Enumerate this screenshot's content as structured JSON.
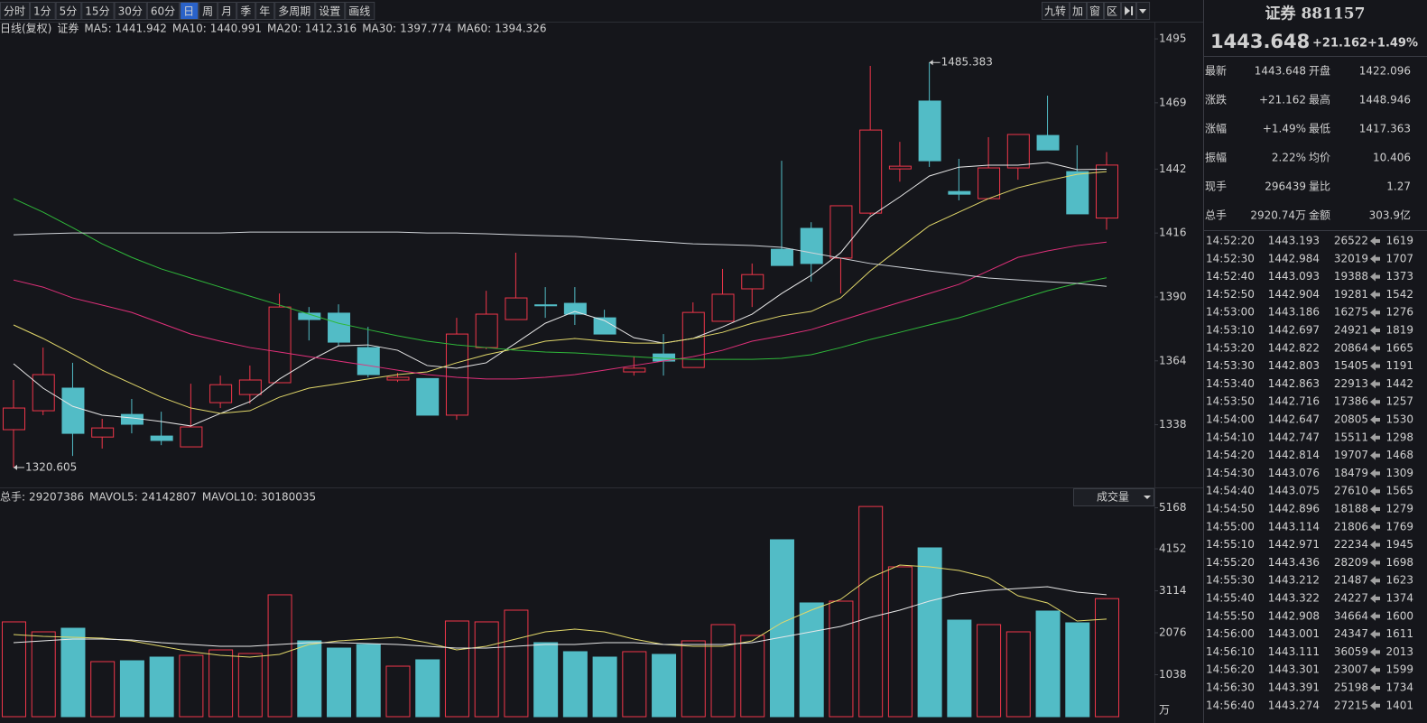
{
  "toolbar": {
    "periods": [
      "分时",
      "1分",
      "5分",
      "15分",
      "30分",
      "60分",
      "日",
      "周",
      "月",
      "季",
      "年",
      "多周期",
      "设置",
      "画线"
    ],
    "active": "日",
    "right": [
      "九转",
      "加",
      "窗",
      "区"
    ]
  },
  "chart_data": [
    {
      "type": "candlestick",
      "label": "日线(复权)",
      "name": "证券",
      "up_color": "#f0364a",
      "down_color": "#52bcc6",
      "open": [
        1336.0,
        1343.7,
        1352.9,
        1333.0,
        1342.2,
        1333.4,
        1329.0,
        1347.0,
        1350.3,
        1355.1,
        1383.4,
        1383.4,
        1369.4,
        1356.2,
        1356.8,
        1341.9,
        1369.4,
        1380.8,
        1386.8,
        1387.4,
        1381.5,
        1359.5,
        1366.8,
        1361.3,
        1380.1,
        1393.3,
        1409.4,
        1417.9,
        1405.8,
        1424.1,
        1442.1,
        1469.7,
        1432.9,
        1430.0,
        1442.5,
        1455.7,
        1441.0,
        1422.096
      ],
      "high": [
        1356.2,
        1369.4,
        1363.2,
        1340.4,
        1348.5,
        1343.3,
        1354.7,
        1358.0,
        1362.1,
        1391.4,
        1385.9,
        1387.0,
        1377.8,
        1359.1,
        1356.8,
        1381.5,
        1392.5,
        1408.0,
        1394.0,
        1394.0,
        1384.8,
        1365.7,
        1374.9,
        1387.8,
        1401.4,
        1403.6,
        1445.4,
        1420.4,
        1427.1,
        1484.0,
        1453.1,
        1485.383,
        1446.2,
        1455.0,
        1456.1,
        1471.9,
        1451.7,
        1448.946
      ],
      "low": [
        1320.605,
        1341.9,
        1325.3,
        1328.3,
        1334.5,
        1329.7,
        1329.0,
        1344.8,
        1346.6,
        1355.1,
        1372.3,
        1370.1,
        1357.3,
        1355.4,
        1341.9,
        1340.0,
        1368.7,
        1380.8,
        1381.5,
        1378.6,
        1374.9,
        1358.0,
        1358.0,
        1361.3,
        1380.1,
        1385.9,
        1402.8,
        1396.2,
        1391.4,
        1423.4,
        1436.9,
        1442.9,
        1429.3,
        1430.0,
        1437.7,
        1449.8,
        1423.8,
        1417.363
      ],
      "close": [
        1344.8,
        1358.4,
        1334.5,
        1336.7,
        1338.2,
        1331.6,
        1337.1,
        1354.3,
        1356.2,
        1385.9,
        1380.8,
        1371.6,
        1358.4,
        1357.3,
        1341.9,
        1374.9,
        1383.0,
        1389.6,
        1386.4,
        1383.0,
        1374.9,
        1361.0,
        1363.9,
        1383.7,
        1391.1,
        1399.1,
        1402.8,
        1403.6,
        1427.1,
        1457.9,
        1443.2,
        1445.4,
        1431.8,
        1442.5,
        1456.1,
        1449.8,
        1423.8,
        1443.648
      ],
      "ylim": [
        1312.5,
        1502
      ],
      "yticks": [
        1495,
        1469,
        1442,
        1416,
        1390,
        1364,
        1338
      ],
      "series": [
        {
          "name": "MA5:",
          "color": "#e8e8e8",
          "values": [
            1362.8,
            1352.9,
            1345.5,
            1341.9,
            1340.8,
            1339.3,
            1337.5,
            1342.6,
            1347.4,
            1356.6,
            1363.9,
            1370.1,
            1370.5,
            1368.3,
            1362.1,
            1361.0,
            1363.2,
            1371.2,
            1379.3,
            1384.1,
            1380.4,
            1373.4,
            1371.2,
            1373.1,
            1377.8,
            1383.0,
            1391.4,
            1398.8,
            1408.0,
            1422.7,
            1430.7,
            1439.2,
            1442.8,
            1443.6,
            1443.6,
            1444.7,
            1441.8,
            1441.942
          ]
        },
        {
          "name": "MA10:",
          "color": "#e2d86a",
          "values": [
            1378.6,
            1373.1,
            1366.8,
            1360.2,
            1354.7,
            1349.2,
            1344.8,
            1342.6,
            1343.7,
            1349.2,
            1352.9,
            1354.7,
            1356.6,
            1358.4,
            1359.5,
            1363.2,
            1366.5,
            1369.0,
            1372.0,
            1373.1,
            1372.0,
            1371.2,
            1371.2,
            1373.1,
            1375.6,
            1379.3,
            1382.3,
            1384.1,
            1389.6,
            1400.6,
            1409.8,
            1419.0,
            1424.5,
            1430.0,
            1434.4,
            1437.3,
            1439.9,
            1440.991
          ]
        },
        {
          "name": "MA20:",
          "color": "#e0307a",
          "values": [
            1396.9,
            1394.0,
            1389.6,
            1386.7,
            1383.7,
            1379.3,
            1374.9,
            1372.0,
            1369.4,
            1367.6,
            1365.7,
            1363.9,
            1362.1,
            1360.2,
            1358.4,
            1357.3,
            1356.6,
            1356.6,
            1357.3,
            1358.4,
            1360.2,
            1362.1,
            1363.9,
            1365.7,
            1368.3,
            1372.0,
            1374.2,
            1376.7,
            1380.4,
            1384.1,
            1387.8,
            1391.4,
            1395.1,
            1400.6,
            1406.1,
            1408.7,
            1410.9,
            1412.316
          ]
        },
        {
          "name": "MA30:",
          "color": "#2fb83a",
          "values": [
            1430.0,
            1424.5,
            1418.2,
            1411.6,
            1406.1,
            1401.4,
            1397.7,
            1394.0,
            1390.3,
            1386.7,
            1383.0,
            1379.3,
            1376.7,
            1374.2,
            1372.0,
            1370.5,
            1369.4,
            1368.3,
            1367.6,
            1367.2,
            1366.5,
            1365.7,
            1365.0,
            1364.6,
            1364.6,
            1364.6,
            1365.0,
            1366.5,
            1369.4,
            1372.7,
            1375.6,
            1378.6,
            1381.5,
            1385.2,
            1388.9,
            1392.5,
            1395.5,
            1397.774
          ]
        },
        {
          "name": "MA60:",
          "color": "#cfd3d8",
          "values": [
            1415.3,
            1415.7,
            1416.0,
            1416.0,
            1416.0,
            1416.0,
            1416.0,
            1416.0,
            1416.4,
            1416.4,
            1416.4,
            1416.4,
            1416.4,
            1416.4,
            1416.0,
            1416.0,
            1415.7,
            1415.3,
            1414.9,
            1414.6,
            1413.8,
            1413.1,
            1412.4,
            1411.6,
            1411.3,
            1410.9,
            1410.2,
            1408.0,
            1405.8,
            1403.6,
            1402.1,
            1400.6,
            1399.2,
            1397.7,
            1396.9,
            1396.2,
            1395.5,
            1394.326
          ]
        }
      ]
    },
    {
      "type": "bar",
      "unit": "万",
      "selector": "成交量",
      "total": {
        "name": "总手:",
        "value": 29207386,
        "color": "#f0364a"
      },
      "values": [
        2345,
        2099,
        2188,
        1362,
        1384,
        1474,
        1518,
        1652,
        1563,
        3015,
        1876,
        1697,
        1786,
        1250,
        1407,
        2367,
        2345,
        2635,
        1831,
        1608,
        1474,
        1608,
        1541,
        1876,
        2278,
        2010,
        4377,
        2814,
        2858,
        5200,
        3707,
        4176,
        2389,
        2278,
        2099,
        2613,
        2322,
        2920.74
      ],
      "ylim": [
        0,
        5225
      ],
      "yticks": [
        1038,
        2076,
        3114,
        4152,
        5168
      ],
      "series": [
        {
          "name": "MAVOL5:",
          "color": "#e2d86a",
          "legend_value": 24142807,
          "values": [
            2032,
            1987,
            1965,
            1943,
            1876,
            1742,
            1608,
            1518,
            1474,
            1541,
            1786,
            1876,
            1920,
            1965,
            1831,
            1652,
            1742,
            1920,
            2099,
            2166,
            2099,
            1920,
            1786,
            1742,
            1742,
            1876,
            2322,
            2635,
            2903,
            3439,
            3751,
            3707,
            3617,
            3439,
            2992,
            2814,
            2367,
            2414.28
          ]
        },
        {
          "name": "MAVOL10:",
          "color": "#e8e8e8",
          "legend_value": 30180035,
          "values": [
            1831,
            1876,
            1920,
            1920,
            1898,
            1831,
            1786,
            1742,
            1742,
            1786,
            1831,
            1831,
            1809,
            1786,
            1742,
            1697,
            1697,
            1742,
            1786,
            1786,
            1831,
            1831,
            1786,
            1786,
            1786,
            1831,
            1965,
            2099,
            2233,
            2456,
            2635,
            2858,
            3037,
            3126,
            3171,
            3216,
            3082,
            3018.0
          ]
        }
      ]
    }
  ],
  "quote": {
    "title": "证券 881157",
    "price": 1443.648,
    "change": "+21.162",
    "pct": "+1.49%",
    "rows": [
      [
        {
          "label": "最新",
          "value": 1443.648,
          "color": "#f0364a"
        },
        {
          "label": "开盘",
          "value": 1422.096,
          "color": "#2fc04a"
        }
      ],
      [
        {
          "label": "涨跌",
          "value": "+21.162",
          "color": "#f0364a"
        },
        {
          "label": "最高",
          "value": 1448.946,
          "color": "#f0364a"
        }
      ],
      [
        {
          "label": "涨幅",
          "value": "+1.49%",
          "color": "#f0364a"
        },
        {
          "label": "最低",
          "value": 1417.363,
          "color": "#2fc04a"
        }
      ],
      [
        {
          "label": "振幅",
          "value": "2.22%",
          "color": "#d8d8d8"
        },
        {
          "label": "均价",
          "value": 10.406,
          "color": "#2fc04a"
        }
      ],
      [
        {
          "label": "现手",
          "value": 296439,
          "color": "#d8d8d8"
        },
        {
          "label": "量比",
          "value": 1.27,
          "color": "#f0364a"
        }
      ],
      [
        {
          "label": "总手",
          "value": "2920.74万",
          "color": "#d8d8d8"
        },
        {
          "label": "金额",
          "value": "303.9亿",
          "color": "#d8d8d8"
        }
      ]
    ]
  },
  "ticks": {
    "rows": [
      [
        "14:52:20",
        1443.193,
        26522,
        1619
      ],
      [
        "14:52:30",
        1442.984,
        32019,
        1707
      ],
      [
        "14:52:40",
        1443.093,
        19388,
        1373
      ],
      [
        "14:52:50",
        1442.904,
        19281,
        1542
      ],
      [
        "14:53:00",
        1443.186,
        16275,
        1276
      ],
      [
        "14:53:10",
        1442.697,
        24921,
        1819
      ],
      [
        "14:53:20",
        1442.822,
        20864,
        1665
      ],
      [
        "14:53:30",
        1442.803,
        15405,
        1191
      ],
      [
        "14:53:40",
        1442.863,
        22913,
        1442
      ],
      [
        "14:53:50",
        1442.716,
        17386,
        1257
      ],
      [
        "14:54:00",
        1442.647,
        20805,
        1530
      ],
      [
        "14:54:10",
        1442.747,
        15511,
        1298
      ],
      [
        "14:54:20",
        1442.814,
        19707,
        1468
      ],
      [
        "14:54:30",
        1443.076,
        18479,
        1309
      ],
      [
        "14:54:40",
        1443.075,
        27610,
        1565
      ],
      [
        "14:54:50",
        1442.896,
        18188,
        1279
      ],
      [
        "14:55:00",
        1443.114,
        21806,
        1769
      ],
      [
        "14:55:10",
        1442.971,
        22234,
        1945
      ],
      [
        "14:55:20",
        1443.436,
        28209,
        1698
      ],
      [
        "14:55:30",
        1443.212,
        21487,
        1623
      ],
      [
        "14:55:40",
        1443.322,
        24227,
        1374
      ],
      [
        "14:55:50",
        1442.908,
        34664,
        1600
      ],
      [
        "14:56:00",
        1443.001,
        24347,
        1611
      ],
      [
        "14:56:10",
        1443.111,
        36059,
        2013
      ],
      [
        "14:56:20",
        1443.301,
        23007,
        1599
      ],
      [
        "14:56:30",
        1443.391,
        25198,
        1734
      ],
      [
        "14:56:40",
        1443.274,
        27215,
        1401
      ]
    ]
  }
}
